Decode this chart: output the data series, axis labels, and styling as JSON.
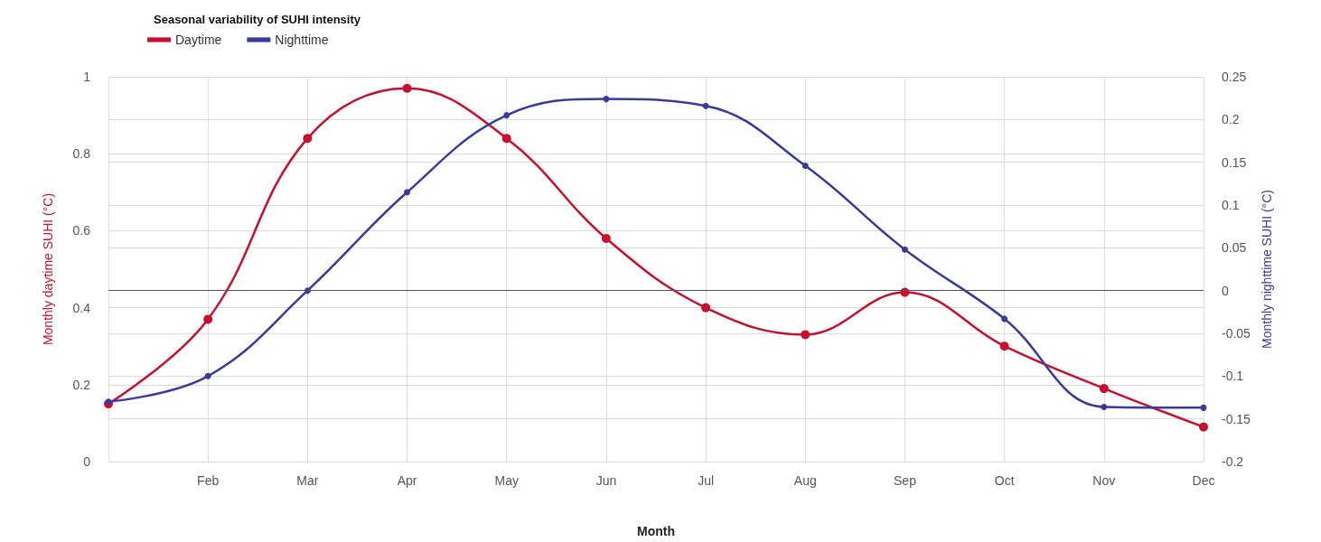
{
  "chart_data": {
    "type": "line",
    "title": "Seasonal variability of SUHI intensity",
    "xlabel": "Month",
    "ylabel": "Monthly daytime SUHI (°C)",
    "y2label": "Monthly nighttime SUHI (°C)",
    "categories": [
      null,
      "Feb",
      "Mar",
      "Apr",
      "May",
      "Jun",
      "Jul",
      "Aug",
      "Sep",
      "Oct",
      "Nov",
      "Dec"
    ],
    "series": [
      {
        "name": "Daytime",
        "color": "#c8102e",
        "values": [
          0.15,
          0.37,
          0.84,
          0.97,
          0.84,
          0.58,
          0.4,
          0.33,
          0.44,
          0.3,
          0.19,
          0.09
        ]
      },
      {
        "name": "Nighttime",
        "color": "#3a3a9c",
        "axis": "y2",
        "values": [
          -0.13,
          -0.1,
          0.0,
          0.115,
          0.205,
          0.224,
          0.216,
          0.146,
          0.048,
          -0.033,
          -0.136,
          -0.137
        ]
      }
    ],
    "ylim": [
      0,
      1
    ],
    "yticks": [
      0,
      0.2,
      0.4,
      0.6,
      0.8,
      1
    ],
    "y2lim": [
      -0.2,
      0.25
    ],
    "y2ticks": [
      -0.2,
      -0.15,
      -0.1,
      -0.05,
      0,
      0.05,
      0.1,
      0.15,
      0.2,
      0.25
    ],
    "ref_lines": [
      {
        "axis": "y2",
        "value": 0,
        "color": "#555555"
      }
    ],
    "grid": true,
    "legend": "top left",
    "marker": "circle",
    "line_style": "solid"
  }
}
